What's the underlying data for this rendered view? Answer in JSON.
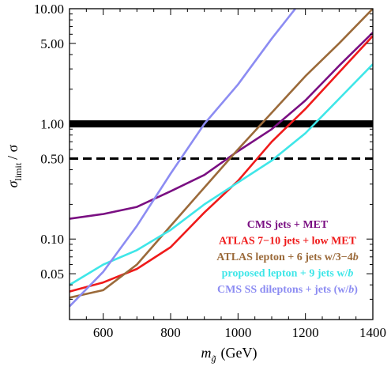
{
  "chart_data": {
    "type": "line",
    "xlabel_main": "m",
    "xlabel_sub": "g̃",
    "xlabel_units": "(GeV)",
    "ylabel_main": "σ",
    "ylabel_sub": "limit",
    "ylabel_rest": "/ σ",
    "xlim": [
      500,
      1400
    ],
    "ylim": [
      0.02,
      10
    ],
    "yscale": "log",
    "xticks": [
      600,
      800,
      1000,
      1200,
      1400
    ],
    "xtick_labels": [
      "600",
      "800",
      "1000",
      "1200",
      "1400"
    ],
    "yticks": [
      0.05,
      0.1,
      0.5,
      1.0,
      5.0,
      10.0
    ],
    "ytick_labels": [
      "0.05",
      "0.10",
      "0.50",
      "1.00",
      "5.00",
      "10.00"
    ],
    "reference_lines": [
      {
        "y": 1.0,
        "style": "solid-thick",
        "color": "#000000"
      },
      {
        "y": 0.5,
        "style": "dashed",
        "color": "#000000"
      }
    ],
    "series": [
      {
        "name": "CMS jets + MET",
        "color": "#7a0f82",
        "x": [
          500,
          600,
          700,
          800,
          900,
          1000,
          1100,
          1200,
          1300,
          1400
        ],
        "y": [
          0.15,
          0.165,
          0.19,
          0.26,
          0.36,
          0.58,
          0.9,
          1.6,
          3.2,
          6.2
        ]
      },
      {
        "name": "ATLAS 7−10 jets + low MET",
        "color": "#ef1a1a",
        "x": [
          500,
          600,
          700,
          800,
          900,
          1000,
          1100,
          1200,
          1300,
          1400
        ],
        "y": [
          0.035,
          0.042,
          0.055,
          0.085,
          0.17,
          0.32,
          0.7,
          1.35,
          2.8,
          5.8
        ]
      },
      {
        "name": "ATLAS lepton + 6 jets w/3−4b",
        "color": "#9b6a3a",
        "x": [
          500,
          600,
          700,
          800,
          900,
          1000,
          1100,
          1200,
          1300,
          1400
        ],
        "y": [
          0.031,
          0.036,
          0.06,
          0.13,
          0.28,
          0.6,
          1.25,
          2.6,
          5.0,
          10.0
        ]
      },
      {
        "name": "proposed lepton + 9 jets w/b",
        "color": "#3fe6e8",
        "x": [
          500,
          600,
          700,
          800,
          900,
          1000,
          1100,
          1200,
          1300,
          1400
        ],
        "y": [
          0.04,
          0.06,
          0.08,
          0.12,
          0.2,
          0.31,
          0.48,
          0.83,
          1.65,
          3.3
        ]
      },
      {
        "name": "CMS SS dileptons + jets (w/b)",
        "color": "#8c8cf2",
        "x": [
          500,
          600,
          700,
          800,
          900,
          1000,
          1100,
          1170
        ],
        "y": [
          0.026,
          0.052,
          0.13,
          0.37,
          1.0,
          2.2,
          5.5,
          10.0
        ]
      }
    ],
    "legend": {
      "placement": "lower-right",
      "entries": [
        {
          "parts": [
            {
              "t": "CMS jets + MET"
            }
          ],
          "color": "#7a0f82"
        },
        {
          "parts": [
            {
              "t": "ATLAS 7−10 jets + low MET"
            }
          ],
          "color": "#ef1a1a"
        },
        {
          "parts": [
            {
              "t": "ATLAS lepton + 6 jets w/3−4"
            },
            {
              "t": "b",
              "i": true
            }
          ],
          "color": "#9b6a3a"
        },
        {
          "parts": [
            {
              "t": "proposed lepton + 9 jets w/"
            },
            {
              "t": "b",
              "i": true
            }
          ],
          "color": "#3fe6e8"
        },
        {
          "parts": [
            {
              "t": "CMS SS dileptons + jets (w/"
            },
            {
              "t": "b",
              "i": true
            },
            {
              "t": ")"
            }
          ],
          "color": "#8c8cf2"
        }
      ]
    }
  }
}
